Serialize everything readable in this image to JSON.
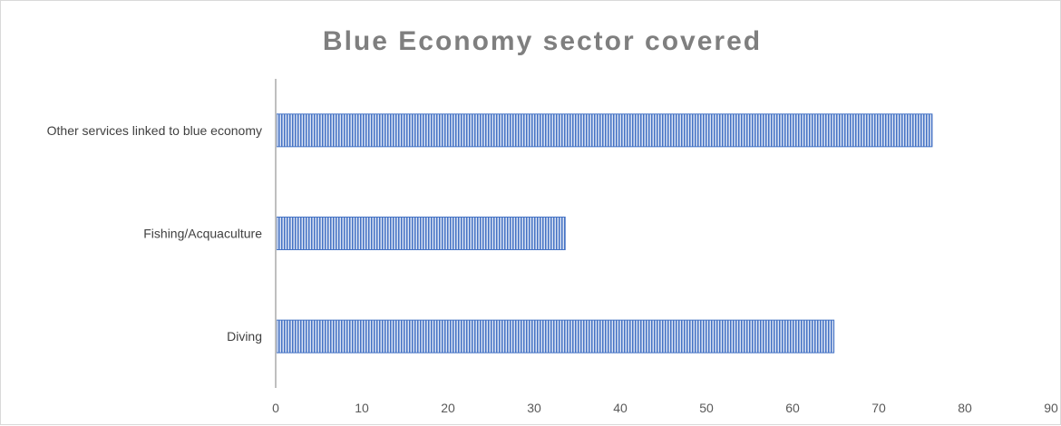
{
  "chart_data": {
    "type": "bar",
    "orientation": "horizontal",
    "title": "Blue Economy sector covered",
    "categories": [
      "Other services linked to blue economy",
      "Fishing/Acquaculture",
      "Diving"
    ],
    "values": [
      76.2,
      33.6,
      64.8
    ],
    "xlim": [
      0,
      90
    ],
    "xticks": [
      "0",
      "10",
      "20",
      "30",
      "40",
      "50",
      "60",
      "70",
      "80",
      "90"
    ],
    "xlabel": "",
    "ylabel": "",
    "grid": false,
    "legend": "none",
    "colors": {
      "bar": "#4472c4",
      "bar_stripe": "#ffffff",
      "axis": "#bfbfbf",
      "title": "#7f7f7f"
    }
  }
}
